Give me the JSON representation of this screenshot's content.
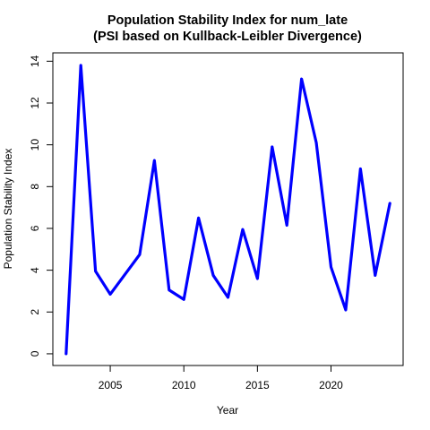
{
  "chart_data": {
    "type": "line",
    "title": "Population Stability Index for num_late",
    "subtitle": "(PSI based on Kullback-Leibler Divergence)",
    "xlabel": "Year",
    "ylabel": "Population Stability Index",
    "xlim": [
      2001.1,
      2024.9
    ],
    "ylim": [
      -0.56,
      14.4
    ],
    "x_ticks": [
      2005,
      2010,
      2015,
      2020
    ],
    "y_ticks": [
      0,
      2,
      4,
      6,
      8,
      10,
      12,
      14
    ],
    "grid": false,
    "legend": "none",
    "series": [
      {
        "color": "#0000ff",
        "x": [
          2002,
          2003,
          2004,
          2005,
          2006,
          2007,
          2008,
          2009,
          2010,
          2011,
          2012,
          2013,
          2014,
          2015,
          2016,
          2017,
          2018,
          2019,
          2020,
          2021,
          2022,
          2023,
          2024
        ],
        "y": [
          0.0,
          13.8,
          3.95,
          2.85,
          3.8,
          4.75,
          9.25,
          3.05,
          2.6,
          6.5,
          3.75,
          2.7,
          5.95,
          3.6,
          9.9,
          6.15,
          13.15,
          10.1,
          4.15,
          2.1,
          8.85,
          3.75,
          7.2
        ]
      }
    ]
  }
}
